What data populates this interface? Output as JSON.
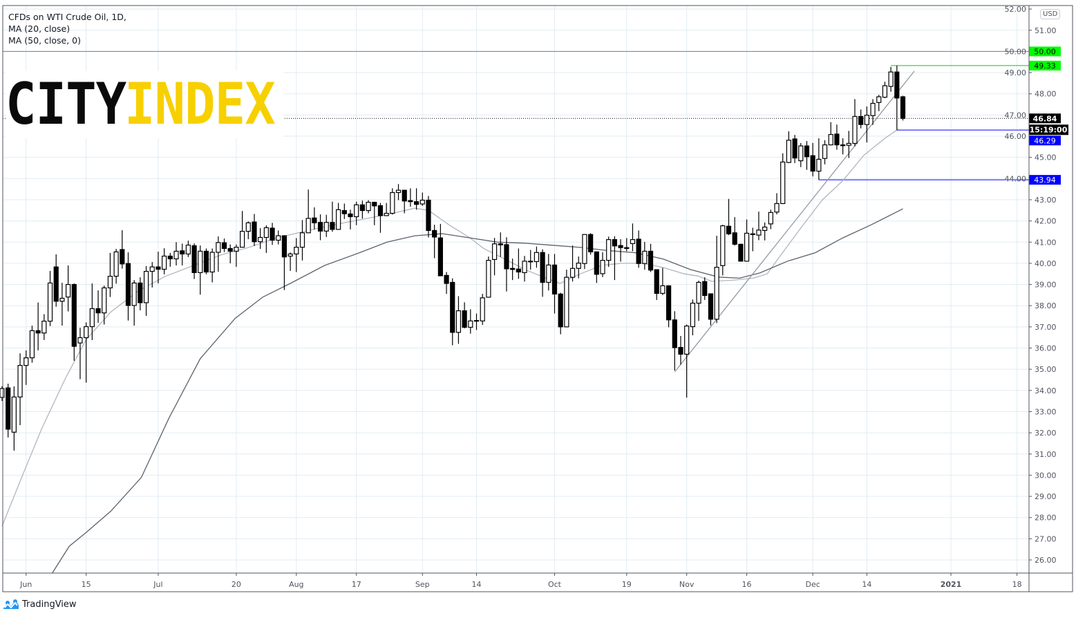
{
  "legend": {
    "symbol": "CFDs on WTI Crude Oil, 1D,",
    "ma20": "MA (20, close)",
    "ma50": "MA (50, close, 0)"
  },
  "logo": {
    "part1": "CITY",
    "part2": "INDEX"
  },
  "currency_badge": "USD",
  "footer": {
    "brand": "TradingView"
  },
  "colors": {
    "up_fill": "#ffffff",
    "down_fill": "#000000",
    "candle_border": "#000000",
    "ma20": "#b2b5be",
    "ma50": "#5d606b",
    "trendline": "#9598a1",
    "green_tag": "#00ff00",
    "blue_tag": "#0000ff",
    "grid": "#e1ecf2",
    "logo_yellow": "#f7d000"
  },
  "chart_data": {
    "type": "candlestick",
    "title": "CFDs on WTI Crude Oil, 1D",
    "ylim": [
      25.5,
      52.2
    ],
    "y_ticks": [
      "26.00",
      "27.00",
      "28.00",
      "29.00",
      "30.00",
      "31.00",
      "32.00",
      "33.00",
      "34.00",
      "35.00",
      "36.00",
      "37.00",
      "38.00",
      "39.00",
      "40.00",
      "41.00",
      "42.00",
      "43.00",
      "44.00",
      "45.00",
      "46.00",
      "47.00",
      "48.00",
      "49.00",
      "50.00",
      "51.00",
      "52.00"
    ],
    "x_ticks": [
      {
        "label": "Jun",
        "bar": 4
      },
      {
        "label": "15",
        "bar": 14
      },
      {
        "label": "Jul",
        "bar": 26
      },
      {
        "label": "20",
        "bar": 39
      },
      {
        "label": "Aug",
        "bar": 49
      },
      {
        "label": "17",
        "bar": 59
      },
      {
        "label": "Sep",
        "bar": 70
      },
      {
        "label": "14",
        "bar": 79
      },
      {
        "label": "Oct",
        "bar": 92
      },
      {
        "label": "19",
        "bar": 104
      },
      {
        "label": "Nov",
        "bar": 114
      },
      {
        "label": "16",
        "bar": 124
      },
      {
        "label": "Dec",
        "bar": 135
      },
      {
        "label": "14",
        "bar": 144
      },
      {
        "label": "2021",
        "bar": 158
      },
      {
        "label": "18",
        "bar": 169
      }
    ],
    "ohlc_fields": [
      "open",
      "high",
      "low",
      "close"
    ],
    "ohlc": [
      [
        33.67,
        34.2,
        33.5,
        34.09
      ],
      [
        34.12,
        34.32,
        31.78,
        32.17
      ],
      [
        32.03,
        34.19,
        31.16,
        33.69
      ],
      [
        33.69,
        35.75,
        32.36,
        35.18
      ],
      [
        35.18,
        35.89,
        34.26,
        35.54
      ],
      [
        35.54,
        37.06,
        35.31,
        36.82
      ],
      [
        36.82,
        38.15,
        35.89,
        36.71
      ],
      [
        36.71,
        37.6,
        36.38,
        37.27
      ],
      [
        37.27,
        39.64,
        37.04,
        39.07
      ],
      [
        39.83,
        40.42,
        37.95,
        38.21
      ],
      [
        38.21,
        39.08,
        37.06,
        38.35
      ],
      [
        38.41,
        39.9,
        37.73,
        39.0
      ],
      [
        39.0,
        39.05,
        35.4,
        36.08
      ],
      [
        36.24,
        36.96,
        34.53,
        36.49
      ],
      [
        36.49,
        37.21,
        34.37,
        37.01
      ],
      [
        37.01,
        39.05,
        36.38,
        37.86
      ],
      [
        37.86,
        38.72,
        37.19,
        37.66
      ],
      [
        37.66,
        38.95,
        37.11,
        38.84
      ],
      [
        38.84,
        40.49,
        38.41,
        39.39
      ],
      [
        39.39,
        40.68,
        39.04,
        40.54
      ],
      [
        40.65,
        41.56,
        39.75,
        39.97
      ],
      [
        39.99,
        40.52,
        37.3,
        38.01
      ],
      [
        38.01,
        39.21,
        37.06,
        39.07
      ],
      [
        39.07,
        39.34,
        37.78,
        38.14
      ],
      [
        38.14,
        39.87,
        37.52,
        39.62
      ],
      [
        39.62,
        40.06,
        38.86,
        39.83
      ],
      [
        39.83,
        40.55,
        39.05,
        39.72
      ],
      [
        39.72,
        40.71,
        39.48,
        40.34
      ],
      [
        40.34,
        40.49,
        39.84,
        40.21
      ],
      [
        40.21,
        41.0,
        39.9,
        40.57
      ],
      [
        40.59,
        40.93,
        39.9,
        40.44
      ],
      [
        40.44,
        41.07,
        40.3,
        40.86
      ],
      [
        40.83,
        40.94,
        39.26,
        39.56
      ],
      [
        39.56,
        40.84,
        38.52,
        40.57
      ],
      [
        40.57,
        40.7,
        39.48,
        39.59
      ],
      [
        39.59,
        40.7,
        39.1,
        40.52
      ],
      [
        40.52,
        41.27,
        39.6,
        40.98
      ],
      [
        40.97,
        41.17,
        40.53,
        40.7
      ],
      [
        40.7,
        40.89,
        40.0,
        40.57
      ],
      [
        40.57,
        40.89,
        39.83,
        40.76
      ],
      [
        40.76,
        42.47,
        40.76,
        41.51
      ],
      [
        41.51,
        41.98,
        41.14,
        41.91
      ],
      [
        41.95,
        42.33,
        40.82,
        41.02
      ],
      [
        41.02,
        41.66,
        40.68,
        41.22
      ],
      [
        41.22,
        41.79,
        40.49,
        41.68
      ],
      [
        41.66,
        41.91,
        40.87,
        41.09
      ],
      [
        41.09,
        41.55,
        40.89,
        41.3
      ],
      [
        41.3,
        41.33,
        38.74,
        40.3
      ],
      [
        40.34,
        40.51,
        39.64,
        40.44
      ],
      [
        40.44,
        41.19,
        39.59,
        40.76
      ],
      [
        40.76,
        42.04,
        40.13,
        41.44
      ],
      [
        41.44,
        43.48,
        41.44,
        42.12
      ],
      [
        42.14,
        42.64,
        41.6,
        41.91
      ],
      [
        41.93,
        42.31,
        41.09,
        41.52
      ],
      [
        41.52,
        42.29,
        41.24,
        41.93
      ],
      [
        41.93,
        42.91,
        41.49,
        41.6
      ],
      [
        41.6,
        42.85,
        41.58,
        42.53
      ],
      [
        42.49,
        42.82,
        42.09,
        42.34
      ],
      [
        42.33,
        42.53,
        41.6,
        42.2
      ],
      [
        42.2,
        42.91,
        41.8,
        42.76
      ],
      [
        42.76,
        42.96,
        42.11,
        42.49
      ],
      [
        42.49,
        42.98,
        42.36,
        42.88
      ],
      [
        42.88,
        42.91,
        41.8,
        42.71
      ],
      [
        42.72,
        42.85,
        41.44,
        42.25
      ],
      [
        42.25,
        42.85,
        42.23,
        42.36
      ],
      [
        42.36,
        43.54,
        42.3,
        43.34
      ],
      [
        43.34,
        43.74,
        42.98,
        43.45
      ],
      [
        43.45,
        43.46,
        42.36,
        42.94
      ],
      [
        42.96,
        43.54,
        42.67,
        42.91
      ],
      [
        42.91,
        43.54,
        42.53,
        42.78
      ],
      [
        42.8,
        43.34,
        42.71,
        42.98
      ],
      [
        42.98,
        43.18,
        41.22,
        41.55
      ],
      [
        41.55,
        41.82,
        40.24,
        41.24
      ],
      [
        41.2,
        41.86,
        39.41,
        39.41
      ],
      [
        39.43,
        39.59,
        38.56,
        39.05
      ],
      [
        39.1,
        39.29,
        36.13,
        36.74
      ],
      [
        36.74,
        38.45,
        36.2,
        37.76
      ],
      [
        37.76,
        38.16,
        36.93,
        36.98
      ],
      [
        36.98,
        37.83,
        36.68,
        37.28
      ],
      [
        37.28,
        37.63,
        36.85,
        37.3
      ],
      [
        37.28,
        38.56,
        37.09,
        38.37
      ],
      [
        38.4,
        40.32,
        38.38,
        40.14
      ],
      [
        40.18,
        41.2,
        39.43,
        40.92
      ],
      [
        40.92,
        41.46,
        40.3,
        40.87
      ],
      [
        40.88,
        41.23,
        38.67,
        39.74
      ],
      [
        39.76,
        40.22,
        39.21,
        39.71
      ],
      [
        39.73,
        40.7,
        39.27,
        39.59
      ],
      [
        39.56,
        40.35,
        39.14,
        40.1
      ],
      [
        40.1,
        40.63,
        39.7,
        40.07
      ],
      [
        40.08,
        40.79,
        39.79,
        40.51
      ],
      [
        40.51,
        40.66,
        38.42,
        39.1
      ],
      [
        39.1,
        40.44,
        38.72,
        39.92
      ],
      [
        39.92,
        40.44,
        37.63,
        38.55
      ],
      [
        38.55,
        38.61,
        36.65,
        37.0
      ],
      [
        37.0,
        39.7,
        36.98,
        39.34
      ],
      [
        39.34,
        40.84,
        39.14,
        39.76
      ],
      [
        39.76,
        40.32,
        39.29,
        40.01
      ],
      [
        39.99,
        41.36,
        39.73,
        41.36
      ],
      [
        41.36,
        41.42,
        40.41,
        40.54
      ],
      [
        40.54,
        40.56,
        39.07,
        39.48
      ],
      [
        39.51,
        40.52,
        39.35,
        40.14
      ],
      [
        40.14,
        41.26,
        39.83,
        41.12
      ],
      [
        41.12,
        41.28,
        39.21,
        40.82
      ],
      [
        40.84,
        41.14,
        40.08,
        40.74
      ],
      [
        40.74,
        41.19,
        40.57,
        40.7
      ],
      [
        40.93,
        41.88,
        40.57,
        41.12
      ],
      [
        41.14,
        41.55,
        39.79,
        39.99
      ],
      [
        39.99,
        41.01,
        39.7,
        40.57
      ],
      [
        40.57,
        40.92,
        39.59,
        39.68
      ],
      [
        39.7,
        39.7,
        38.27,
        38.58
      ],
      [
        38.58,
        39.79,
        38.5,
        38.94
      ],
      [
        38.94,
        38.96,
        36.98,
        37.33
      ],
      [
        37.33,
        37.74,
        34.94,
        36.02
      ],
      [
        36.03,
        36.57,
        35.22,
        35.71
      ],
      [
        35.71,
        37.11,
        33.66,
        37.04
      ],
      [
        37.01,
        38.29,
        36.6,
        38.12
      ],
      [
        38.12,
        39.18,
        37.28,
        39.1
      ],
      [
        39.14,
        39.34,
        38.27,
        38.48
      ],
      [
        38.56,
        38.58,
        37.07,
        37.36
      ],
      [
        37.36,
        41.3,
        37.18,
        39.81
      ],
      [
        39.89,
        41.82,
        39.43,
        41.77
      ],
      [
        41.75,
        43.04,
        41.33,
        41.39
      ],
      [
        41.44,
        42.18,
        40.84,
        40.9
      ],
      [
        40.9,
        40.92,
        40.08,
        40.1
      ],
      [
        40.1,
        42.07,
        40.08,
        41.42
      ],
      [
        41.39,
        41.68,
        40.57,
        41.36
      ],
      [
        41.33,
        42.44,
        41.09,
        41.57
      ],
      [
        41.55,
        41.93,
        41.08,
        41.71
      ],
      [
        41.86,
        42.53,
        41.61,
        42.4
      ],
      [
        42.42,
        43.31,
        42.31,
        42.82
      ],
      [
        42.82,
        45.19,
        42.8,
        44.78
      ],
      [
        44.76,
        46.23,
        44.73,
        45.81
      ],
      [
        45.87,
        46.06,
        44.73,
        44.97
      ],
      [
        44.84,
        45.68,
        44.54,
        45.54
      ],
      [
        45.54,
        45.77,
        44.41,
        45.03
      ],
      [
        45.08,
        45.68,
        44.1,
        44.35
      ],
      [
        44.35,
        45.9,
        43.94,
        44.91
      ],
      [
        44.95,
        45.81,
        44.67,
        45.59
      ],
      [
        45.59,
        46.66,
        45.57,
        46.08
      ],
      [
        46.1,
        46.55,
        45.36,
        45.59
      ],
      [
        45.59,
        45.9,
        45.14,
        45.55
      ],
      [
        45.57,
        46.25,
        44.97,
        45.66
      ],
      [
        45.66,
        47.75,
        45.52,
        46.93
      ],
      [
        46.93,
        47.26,
        46.37,
        46.55
      ],
      [
        46.55,
        47.4,
        45.7,
        46.99
      ],
      [
        46.97,
        47.75,
        46.53,
        47.55
      ],
      [
        47.59,
        47.95,
        47.18,
        47.86
      ],
      [
        47.84,
        48.57,
        47.8,
        48.38
      ],
      [
        48.35,
        49.27,
        48.1,
        49.03
      ],
      [
        49.03,
        49.33,
        46.28,
        47.8
      ],
      [
        47.86,
        47.91,
        46.74,
        46.84
      ]
    ],
    "series": [
      {
        "name": "MA (20, close)",
        "type": "line",
        "points": [
          [
            0,
            27.6
          ],
          [
            3.7,
            30.2
          ],
          [
            6.6,
            32.2
          ],
          [
            10.6,
            34.6
          ],
          [
            14,
            36.4
          ],
          [
            18.1,
            37.7
          ],
          [
            22.7,
            38.7
          ],
          [
            27.3,
            39.4
          ],
          [
            31.9,
            39.9
          ],
          [
            36.5,
            40.4
          ],
          [
            41.1,
            40.75
          ],
          [
            45.7,
            41.2
          ],
          [
            50.3,
            41.5
          ],
          [
            54.9,
            41.8
          ],
          [
            59.5,
            42.05
          ],
          [
            64.1,
            42.3
          ],
          [
            68.7,
            42.6
          ],
          [
            71,
            42.5
          ],
          [
            74.5,
            41.8
          ],
          [
            77.9,
            41.2
          ],
          [
            80.2,
            40.7
          ],
          [
            83.7,
            40.2
          ],
          [
            87.1,
            39.7
          ],
          [
            90.6,
            39.3
          ],
          [
            92.9,
            39.05
          ],
          [
            96.3,
            39.5
          ],
          [
            99.8,
            39.9
          ],
          [
            103.2,
            40.0
          ],
          [
            106.7,
            40.0
          ],
          [
            110.1,
            39.8
          ],
          [
            113.6,
            39.5
          ],
          [
            115.9,
            39.4
          ],
          [
            118.2,
            39.15
          ],
          [
            121.6,
            39.2
          ],
          [
            125.1,
            39.3
          ],
          [
            127.4,
            39.5
          ],
          [
            129.7,
            40.4
          ],
          [
            133.1,
            41.7
          ],
          [
            136.6,
            43.0
          ],
          [
            140,
            43.9
          ],
          [
            143.5,
            45.1
          ],
          [
            147,
            45.9
          ],
          [
            149.3,
            46.35
          ]
        ]
      },
      {
        "name": "MA (50, close, 0)",
        "type": "line",
        "points": [
          [
            8.3,
            25.35
          ],
          [
            11.2,
            26.65
          ],
          [
            14,
            27.3
          ],
          [
            18.1,
            28.3
          ],
          [
            23.2,
            29.9
          ],
          [
            27.8,
            32.7
          ],
          [
            33,
            35.5
          ],
          [
            38.8,
            37.4
          ],
          [
            43.4,
            38.4
          ],
          [
            48,
            39.05
          ],
          [
            53.7,
            39.9
          ],
          [
            59.5,
            40.5
          ],
          [
            64.1,
            41.0
          ],
          [
            68.7,
            41.3
          ],
          [
            73.3,
            41.4
          ],
          [
            77.9,
            41.2
          ],
          [
            82.5,
            41.0
          ],
          [
            87.1,
            40.95
          ],
          [
            91.7,
            40.85
          ],
          [
            96.3,
            40.75
          ],
          [
            100.9,
            40.6
          ],
          [
            105.5,
            40.5
          ],
          [
            110.1,
            40.2
          ],
          [
            114.7,
            39.7
          ],
          [
            119.3,
            39.35
          ],
          [
            122.8,
            39.3
          ],
          [
            126.2,
            39.55
          ],
          [
            130.8,
            40.1
          ],
          [
            135.4,
            40.5
          ],
          [
            140,
            41.2
          ],
          [
            144.6,
            41.8
          ],
          [
            150,
            42.57
          ]
        ]
      }
    ],
    "trendline": {
      "from": [
        112,
        34.87
      ],
      "to": [
        151.9,
        49.07
      ]
    },
    "levels": [
      {
        "price": 50.0,
        "label": "50.00",
        "from_bar": 0,
        "style": "solid",
        "line_color": "#787b86",
        "tag_color": "#00ff00",
        "text_color": "#000000"
      },
      {
        "price": 49.33,
        "label": "49.33",
        "from_bar": 148,
        "style": "solid",
        "line_color": "#00d000",
        "tag_color": "#00ff00",
        "text_color": "#000000"
      },
      {
        "price": 46.84,
        "label": "46.84",
        "from_bar": 0,
        "style": "dotted",
        "line_color": "#000000",
        "tag_color": "#000000",
        "text_color": "#ffffff"
      },
      {
        "price": 46.29,
        "label": "46.29",
        "from_bar": 149,
        "style": "solid",
        "line_color": "#0000ff",
        "tag_color": "#0000ff",
        "text_color": "#ffffff"
      },
      {
        "price": 43.94,
        "label": "43.94",
        "from_bar": 136,
        "style": "solid",
        "line_color": "#0000ff",
        "tag_color": "#0000ff",
        "text_color": "#ffffff"
      }
    ],
    "countdown": "15:19:00",
    "grid": true
  }
}
